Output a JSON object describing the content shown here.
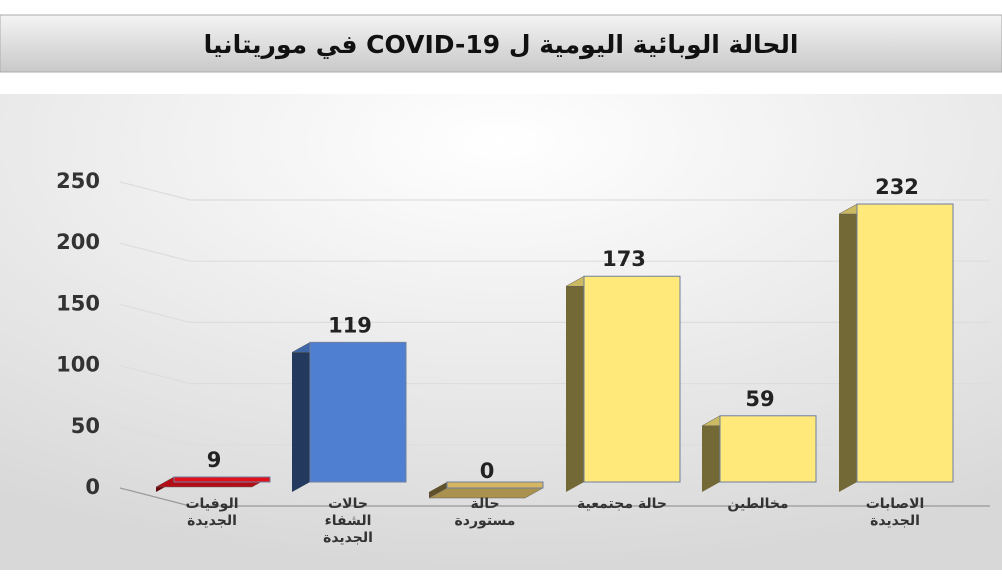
{
  "chart_data": {
    "type": "bar3d",
    "title": "الحالة الوبائية اليومية ل  COVID-19 في موريتانيا",
    "categories": [
      "الوفيات الجديدة",
      "حالات الشفاء الجديدة",
      "حالة مستوردة",
      "حالة مجتمعية",
      "مخالطين",
      "الاصابات الجديدة"
    ],
    "values": [
      9,
      119,
      0,
      173,
      59,
      232
    ],
    "colors": [
      "#e0101a",
      "#4f7fd0",
      "#d4b560",
      "#ffe97a",
      "#ffe97a",
      "#ffe97a"
    ],
    "ylim": [
      0,
      250
    ],
    "yticks": [
      0,
      50,
      100,
      150,
      200,
      250
    ],
    "grid": true
  }
}
